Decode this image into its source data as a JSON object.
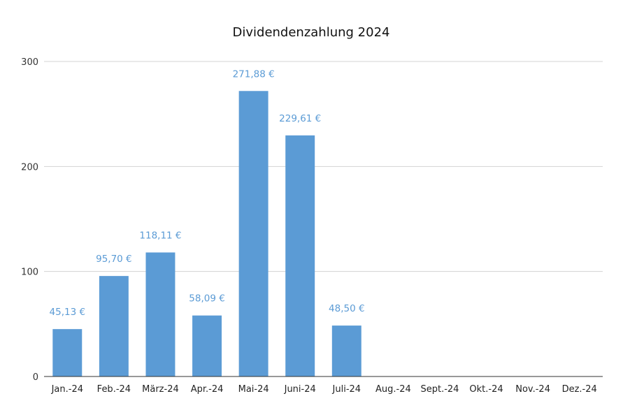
{
  "chart_data": {
    "type": "bar",
    "title": "Dividendenzahlung 2024",
    "xlabel": "",
    "ylabel": "",
    "ylim": [
      0,
      300
    ],
    "yticks": [
      0,
      100,
      200,
      300
    ],
    "grid": true,
    "legend": "none",
    "bar_color": "#5b9bd5",
    "categories": [
      "Jan.-24",
      "Feb.-24",
      "März-24",
      "Apr.-24",
      "Mai-24",
      "Juni-24",
      "Juli-24",
      "Aug.-24",
      "Sept.-24",
      "Okt.-24",
      "Nov.-24",
      "Dez.-24"
    ],
    "values": [
      45.13,
      95.7,
      118.11,
      58.09,
      271.88,
      229.61,
      48.5,
      null,
      null,
      null,
      null,
      null
    ],
    "data_labels": [
      "45,13 €",
      "95,70 €",
      "118,11 €",
      "58,09 €",
      "271,88 €",
      "229,61 €",
      "48,50 €",
      "",
      "",
      "",
      "",
      ""
    ]
  }
}
